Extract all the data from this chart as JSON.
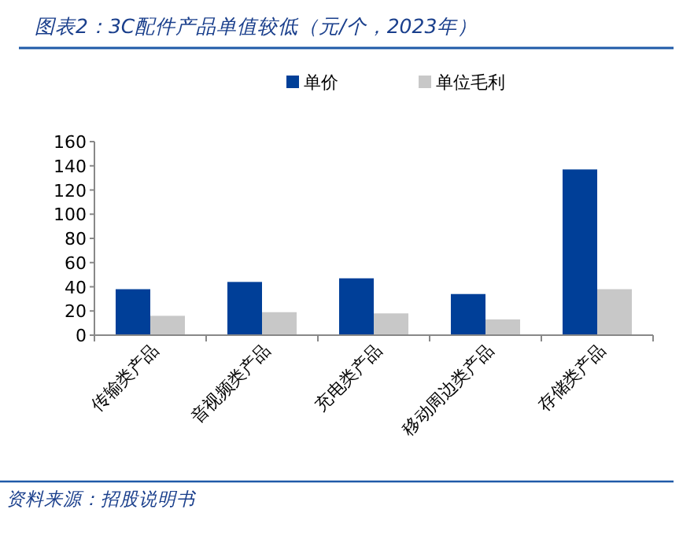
{
  "chart_data": {
    "type": "bar",
    "title": "图表2：3C配件产品单值较低（元/个，2023年）",
    "categories": [
      "传输类产品",
      "音视频类产品",
      "充电类产品",
      "移动周边类产品",
      "存储类产品"
    ],
    "series": [
      {
        "name": "单价",
        "color": "#003f98",
        "values": [
          38,
          44,
          47,
          34,
          137
        ]
      },
      {
        "name": "单位毛利",
        "color": "#c8c8c8",
        "values": [
          16,
          19,
          18,
          13,
          38
        ]
      }
    ],
    "ylim": [
      0,
      160
    ],
    "yticks": [
      0,
      20,
      40,
      60,
      80,
      100,
      120,
      140,
      160
    ],
    "grid": false,
    "legend": "top",
    "annotations": [
      "资料来源：招股说明书"
    ]
  }
}
